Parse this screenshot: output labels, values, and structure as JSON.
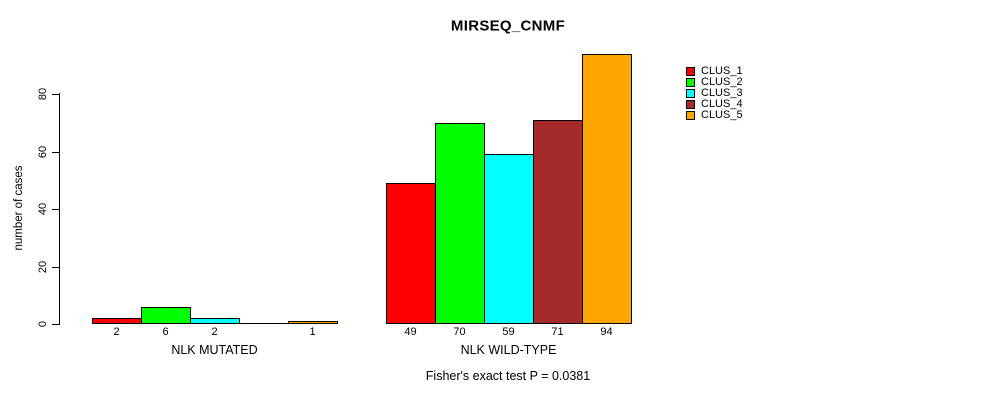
{
  "chart_data": {
    "type": "bar",
    "title": "MIRSEQ_CNMF",
    "ylabel": "number of cases",
    "xlabel": "",
    "annotation": "Fisher's exact test P = 0.0381",
    "ylim": [
      0,
      94
    ],
    "yticks": [
      0,
      20,
      40,
      60,
      80
    ],
    "grid": false,
    "legend_position": "right",
    "categories": [
      "NLK MUTATED",
      "NLK WILD-TYPE"
    ],
    "series": [
      {
        "name": "CLUS_1",
        "color": "#FF0000",
        "values": [
          2,
          49
        ]
      },
      {
        "name": "CLUS_2",
        "color": "#00FF00",
        "values": [
          6,
          70
        ]
      },
      {
        "name": "CLUS_3",
        "color": "#00FFFF",
        "values": [
          2,
          59
        ]
      },
      {
        "name": "CLUS_4",
        "color": "#A52A2A",
        "values": [
          0,
          71
        ]
      },
      {
        "name": "CLUS_5",
        "color": "#FFA500",
        "values": [
          1,
          94
        ]
      }
    ],
    "bar_value_labels": [
      [
        "2",
        "6",
        "2",
        null,
        "1"
      ],
      [
        "49",
        "70",
        "59",
        "71",
        "94"
      ]
    ]
  },
  "legend": {
    "entries": [
      {
        "label": "CLUS_1",
        "color": "#FF0000"
      },
      {
        "label": "CLUS_2",
        "color": "#00FF00"
      },
      {
        "label": "CLUS_3",
        "color": "#00FFFF"
      },
      {
        "label": "CLUS_4",
        "color": "#A52A2A"
      },
      {
        "label": "CLUS_5",
        "color": "#FFA500"
      }
    ]
  }
}
